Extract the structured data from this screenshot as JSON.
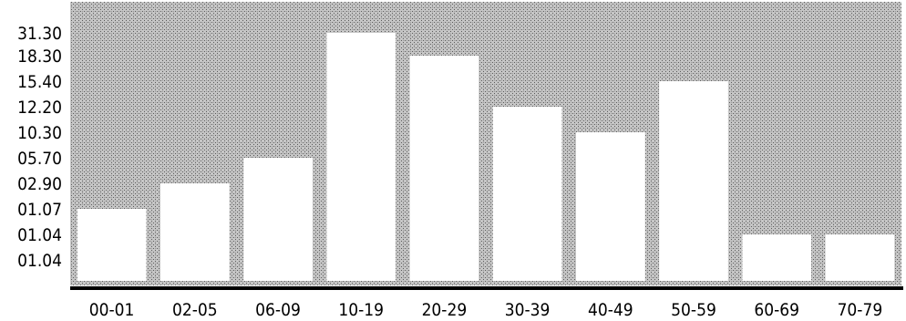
{
  "chart_data": {
    "type": "bar",
    "categories": [
      "00-01",
      "02-05",
      "06-09",
      "10-19",
      "20-29",
      "30-39",
      "40-49",
      "50-59",
      "60-69",
      "70-79"
    ],
    "values": [
      1.07,
      2.9,
      5.7,
      31.3,
      18.3,
      12.2,
      10.3,
      15.4,
      1.04,
      1.04
    ],
    "y_tick_labels": [
      "31.30",
      "18.30",
      "15.40",
      "12.20",
      "10.30",
      "05.70",
      "02.90",
      "01.07",
      "01.04",
      "01.04"
    ],
    "colors": {
      "plot_background": "#b8b8b8",
      "bar": "#ffffff",
      "axis": "#000000"
    },
    "title": "",
    "xlabel": "",
    "ylabel": "",
    "grid": false,
    "legend": "none"
  }
}
